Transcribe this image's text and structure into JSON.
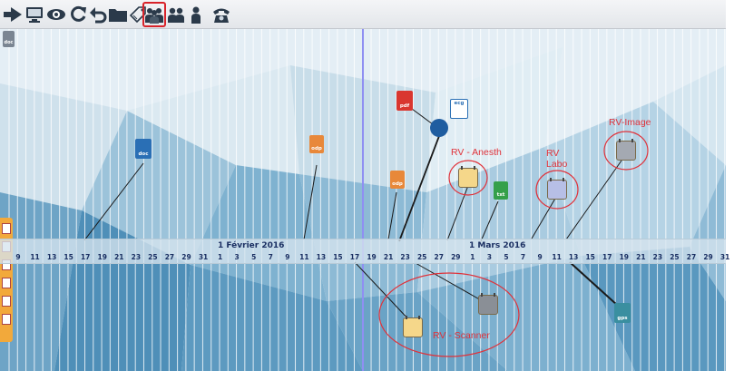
{
  "toolbar": {
    "icons": [
      {
        "name": "play-icon"
      },
      {
        "name": "monitor-icon"
      },
      {
        "name": "eye-icon"
      },
      {
        "name": "refresh-icon"
      },
      {
        "name": "undo-icon"
      },
      {
        "name": "folder-icon"
      },
      {
        "name": "tag-icon"
      },
      {
        "name": "group-users-icon",
        "active": true
      },
      {
        "name": "two-users-icon"
      },
      {
        "name": "single-user-icon"
      },
      {
        "name": "telephone-icon"
      }
    ]
  },
  "top_left_doc_badge": "doc",
  "timeline": {
    "months": [
      {
        "label": "1 Février 2016"
      },
      {
        "label": "1 Mars 2016"
      }
    ],
    "ticks": [
      "9",
      "11",
      "13",
      "15",
      "17",
      "19",
      "21",
      "23",
      "25",
      "27",
      "29",
      "31",
      "1",
      "3",
      "5",
      "7",
      "9",
      "11",
      "13",
      "15",
      "17",
      "19",
      "21",
      "23",
      "25",
      "27",
      "29",
      "1",
      "3",
      "5",
      "7",
      "9",
      "11",
      "13",
      "15",
      "17",
      "19",
      "21",
      "23",
      "25",
      "27",
      "29",
      "31"
    ]
  },
  "documents": [
    {
      "name": "doc-file-icon",
      "badge": "doc",
      "color": "#2a6fb5"
    },
    {
      "name": "odp-file-icon-1",
      "badge": "odp",
      "color": "#e8883a"
    },
    {
      "name": "odp-file-icon-2",
      "badge": "odp",
      "color": "#e8883a"
    },
    {
      "name": "pdf-file-icon",
      "badge": "pdf",
      "color": "#d9362f"
    },
    {
      "name": "chart-file-icon",
      "badge": "ecg",
      "color": "#2a6fb5"
    },
    {
      "name": "person-file-icon",
      "badge": "",
      "color": "#1f5da0"
    },
    {
      "name": "txt-file-icon",
      "badge": "txt",
      "color": "#35a04a"
    },
    {
      "name": "gps-file-icon",
      "badge": "gps",
      "color": "#3a8fa0"
    }
  ],
  "appointments": [
    {
      "label": "RV - Anesth"
    },
    {
      "label": "RV\nLabo"
    },
    {
      "label": "RV-Image"
    },
    {
      "label": "RV - Scanner"
    }
  ],
  "colors": {
    "accent_red": "#e0323a",
    "timeline_text": "#1a2f62",
    "today_line": "#8f8ff2",
    "left_strip": "#f2a93b"
  }
}
